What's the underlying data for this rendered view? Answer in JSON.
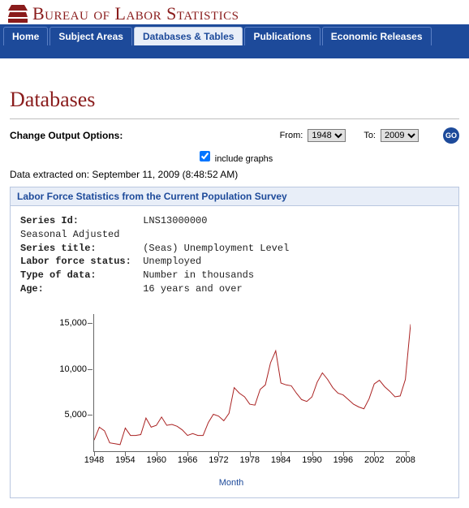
{
  "site": {
    "title": "Bureau of Labor Statistics",
    "logo_color": "#8a1c1c",
    "title_color": "#8a1c1c"
  },
  "nav": {
    "tabs": [
      {
        "label": "Home",
        "active": false
      },
      {
        "label": "Subject Areas",
        "active": false
      },
      {
        "label": "Databases & Tables",
        "active": true
      },
      {
        "label": "Publications",
        "active": false
      },
      {
        "label": "Economic Releases",
        "active": false
      }
    ],
    "bg_color": "#1d4a9a",
    "active_bg": "#e8eef8"
  },
  "page": {
    "title": "Databases",
    "options_label": "Change Output Options:",
    "from_label": "From:",
    "to_label": "To:",
    "from_value": "1948",
    "to_value": "2009",
    "go_label": "GO",
    "include_graphs_label": "include graphs",
    "include_graphs_checked": true,
    "extracted_text": "Data extracted on: September 11, 2009 (8:48:52 AM)"
  },
  "section": {
    "header": "Labor Force Statistics from the Current Population Survey",
    "meta": [
      {
        "key": "Series Id:",
        "val": "LNS13000000"
      },
      {
        "key": "",
        "val": "Seasonal Adjusted",
        "nokey": true
      },
      {
        "key": "Series title:",
        "val": "(Seas) Unemployment Level"
      },
      {
        "key": "Labor force status:",
        "val": "Unemployed"
      },
      {
        "key": "Type of data:",
        "val": "Number in thousands"
      },
      {
        "key": "Age:",
        "val": "16 years and over"
      }
    ]
  },
  "chart": {
    "type": "line",
    "xaxis_title": "Month",
    "line_color": "#aa2222",
    "line_width": 1,
    "background_color": "#ffffff",
    "axis_color": "#666666",
    "label_fontsize": 11,
    "xlim": [
      1948,
      2009
    ],
    "ylim": [
      1000,
      16000
    ],
    "yticks": [
      5000,
      10000,
      15000
    ],
    "ytick_labels": [
      "5,000",
      "10,000",
      "15,000"
    ],
    "xticks": [
      1948,
      1954,
      1960,
      1966,
      1972,
      1978,
      1984,
      1990,
      1996,
      2002,
      2008
    ],
    "series": [
      {
        "x": 1948,
        "y": 2300
      },
      {
        "x": 1949,
        "y": 3700
      },
      {
        "x": 1950,
        "y": 3300
      },
      {
        "x": 1951,
        "y": 2000
      },
      {
        "x": 1952,
        "y": 1900
      },
      {
        "x": 1953,
        "y": 1800
      },
      {
        "x": 1954,
        "y": 3600
      },
      {
        "x": 1955,
        "y": 2800
      },
      {
        "x": 1956,
        "y": 2800
      },
      {
        "x": 1957,
        "y": 2900
      },
      {
        "x": 1958,
        "y": 4700
      },
      {
        "x": 1959,
        "y": 3700
      },
      {
        "x": 1960,
        "y": 3900
      },
      {
        "x": 1961,
        "y": 4800
      },
      {
        "x": 1962,
        "y": 3900
      },
      {
        "x": 1963,
        "y": 4000
      },
      {
        "x": 1964,
        "y": 3800
      },
      {
        "x": 1965,
        "y": 3400
      },
      {
        "x": 1966,
        "y": 2800
      },
      {
        "x": 1967,
        "y": 3000
      },
      {
        "x": 1968,
        "y": 2800
      },
      {
        "x": 1969,
        "y": 2800
      },
      {
        "x": 1970,
        "y": 4200
      },
      {
        "x": 1971,
        "y": 5100
      },
      {
        "x": 1972,
        "y": 4900
      },
      {
        "x": 1973,
        "y": 4400
      },
      {
        "x": 1974,
        "y": 5200
      },
      {
        "x": 1975,
        "y": 8000
      },
      {
        "x": 1976,
        "y": 7400
      },
      {
        "x": 1977,
        "y": 7000
      },
      {
        "x": 1978,
        "y": 6200
      },
      {
        "x": 1979,
        "y": 6100
      },
      {
        "x": 1980,
        "y": 7800
      },
      {
        "x": 1981,
        "y": 8300
      },
      {
        "x": 1982,
        "y": 10700
      },
      {
        "x": 1983,
        "y": 12000
      },
      {
        "x": 1984,
        "y": 8500
      },
      {
        "x": 1985,
        "y": 8300
      },
      {
        "x": 1986,
        "y": 8200
      },
      {
        "x": 1987,
        "y": 7400
      },
      {
        "x": 1988,
        "y": 6700
      },
      {
        "x": 1989,
        "y": 6500
      },
      {
        "x": 1990,
        "y": 7000
      },
      {
        "x": 1991,
        "y": 8600
      },
      {
        "x": 1992,
        "y": 9600
      },
      {
        "x": 1993,
        "y": 8900
      },
      {
        "x": 1994,
        "y": 8000
      },
      {
        "x": 1995,
        "y": 7400
      },
      {
        "x": 1996,
        "y": 7200
      },
      {
        "x": 1997,
        "y": 6700
      },
      {
        "x": 1998,
        "y": 6200
      },
      {
        "x": 1999,
        "y": 5900
      },
      {
        "x": 2000,
        "y": 5700
      },
      {
        "x": 2001,
        "y": 6800
      },
      {
        "x": 2002,
        "y": 8400
      },
      {
        "x": 2003,
        "y": 8800
      },
      {
        "x": 2004,
        "y": 8100
      },
      {
        "x": 2005,
        "y": 7600
      },
      {
        "x": 2006,
        "y": 7000
      },
      {
        "x": 2007,
        "y": 7100
      },
      {
        "x": 2008,
        "y": 8900
      },
      {
        "x": 2009,
        "y": 14900
      }
    ]
  }
}
